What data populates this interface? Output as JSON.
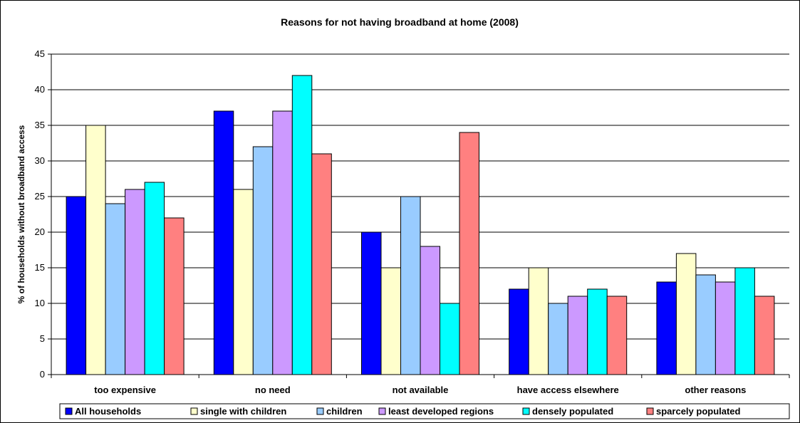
{
  "chart_data": {
    "type": "bar",
    "title": "Reasons for not having broadband at home (2008)",
    "xlabel": "",
    "ylabel": "% of households without broadband access",
    "ylim": [
      0,
      45
    ],
    "yticks": [
      0,
      5,
      10,
      15,
      20,
      25,
      30,
      35,
      40,
      45
    ],
    "grid": true,
    "legend_position": "bottom",
    "categories": [
      "too expensive",
      "no need",
      "not available",
      "have access elsewhere",
      "other reasons"
    ],
    "series": [
      {
        "name": "All households",
        "color": "#0000ff",
        "values": [
          25,
          37,
          20,
          12,
          13
        ]
      },
      {
        "name": "single with children",
        "color": "#ffffcc",
        "values": [
          35,
          26,
          15,
          15,
          17
        ]
      },
      {
        "name": "children",
        "color": "#99ccff",
        "values": [
          24,
          32,
          25,
          10,
          14
        ]
      },
      {
        "name": "least developed regions",
        "color": "#cc99ff",
        "values": [
          26,
          37,
          18,
          11,
          13
        ]
      },
      {
        "name": "densely populated",
        "color": "#00ffff",
        "values": [
          27,
          42,
          10,
          12,
          15
        ]
      },
      {
        "name": "sparcely populated",
        "color": "#ff8080",
        "values": [
          22,
          31,
          34,
          11,
          11
        ]
      }
    ]
  }
}
